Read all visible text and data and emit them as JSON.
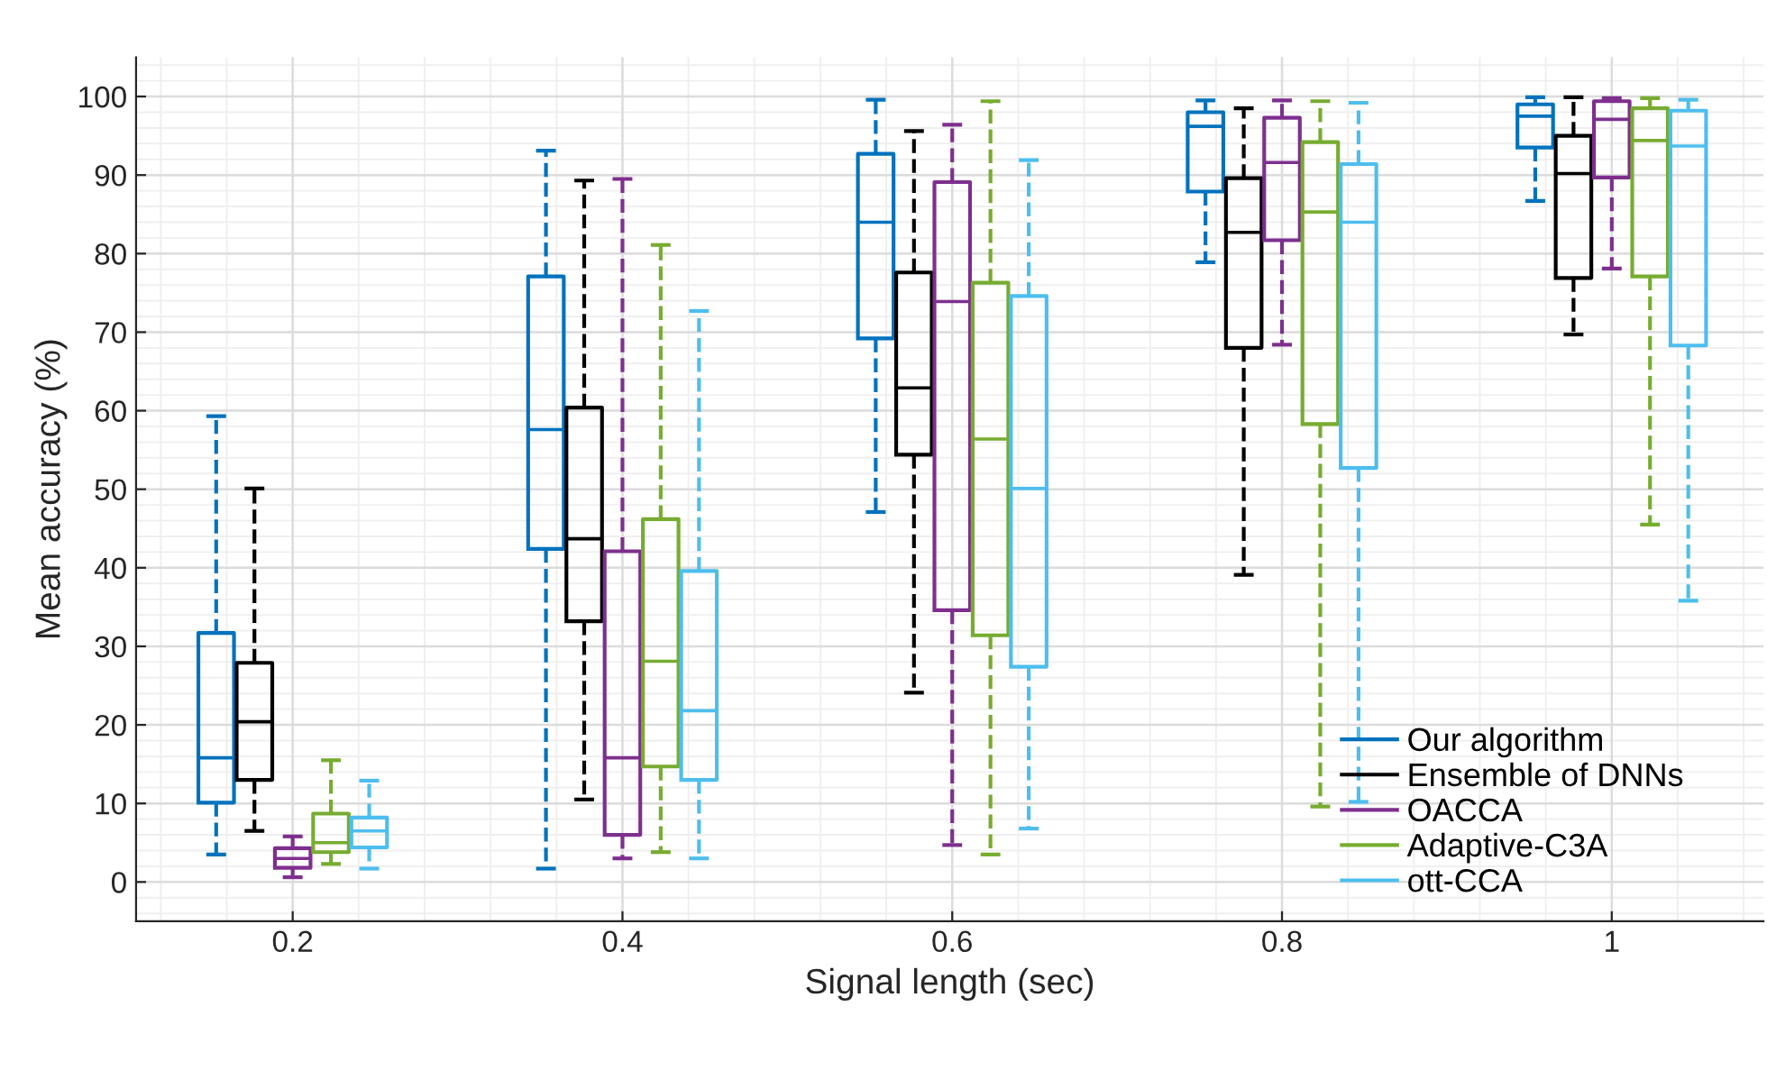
{
  "chart_data": {
    "type": "box",
    "xlabel": "Signal length (sec)",
    "ylabel": "Mean accuracy (%)",
    "categories": [
      "0.2",
      "0.4",
      "0.6",
      "0.8",
      "1"
    ],
    "ylim": [
      -5,
      105
    ],
    "yticks": [
      0,
      10,
      20,
      30,
      40,
      50,
      60,
      70,
      80,
      90,
      100
    ],
    "grid": true,
    "legend": "bottom right",
    "line_style": "dashed",
    "series": [
      {
        "name": "Our algorithm",
        "color": "#0072bd",
        "boxes": [
          {
            "low": 3.5,
            "q1": 10.1,
            "median": 15.8,
            "q3": 31.7,
            "high": 59.3
          },
          {
            "low": 1.7,
            "q1": 42.4,
            "median": 57.6,
            "q3": 77.1,
            "high": 93.1
          },
          {
            "low": 47.1,
            "q1": 69.2,
            "median": 84.0,
            "q3": 92.7,
            "high": 99.6
          },
          {
            "low": 78.9,
            "q1": 87.9,
            "median": 96.2,
            "q3": 98.0,
            "high": 99.5
          },
          {
            "low": 86.7,
            "q1": 93.5,
            "median": 97.5,
            "q3": 99.0,
            "high": 99.9
          }
        ]
      },
      {
        "name": "Ensemble of DNNs",
        "color": "#000000",
        "boxes": [
          {
            "low": 6.5,
            "q1": 13.0,
            "median": 20.4,
            "q3": 27.9,
            "high": 50.1
          },
          {
            "low": 10.5,
            "q1": 33.2,
            "median": 43.7,
            "q3": 60.4,
            "high": 89.3
          },
          {
            "low": 24.1,
            "q1": 54.4,
            "median": 62.9,
            "q3": 77.6,
            "high": 95.6
          },
          {
            "low": 39.1,
            "q1": 68.0,
            "median": 82.7,
            "q3": 89.6,
            "high": 98.5
          },
          {
            "low": 69.7,
            "q1": 76.9,
            "median": 90.2,
            "q3": 95.0,
            "high": 99.9
          }
        ]
      },
      {
        "name": "OACCA",
        "color": "#7e2f8e",
        "boxes": [
          {
            "low": 0.6,
            "q1": 1.8,
            "median": 3.0,
            "q3": 4.3,
            "high": 5.8
          },
          {
            "low": 3.0,
            "q1": 6.0,
            "median": 15.8,
            "q3": 42.1,
            "high": 89.5
          },
          {
            "low": 4.7,
            "q1": 34.6,
            "median": 73.9,
            "q3": 89.1,
            "high": 96.4
          },
          {
            "low": 68.4,
            "q1": 81.7,
            "median": 91.6,
            "q3": 97.3,
            "high": 99.5
          },
          {
            "low": 78.1,
            "q1": 89.7,
            "median": 97.1,
            "q3": 99.4,
            "high": 99.8
          }
        ]
      },
      {
        "name": "Adaptive-C3A",
        "color": "#77ac30",
        "boxes": [
          {
            "low": 2.3,
            "q1": 3.8,
            "median": 5.0,
            "q3": 8.7,
            "high": 15.5
          },
          {
            "low": 3.8,
            "q1": 14.7,
            "median": 28.1,
            "q3": 46.2,
            "high": 81.1
          },
          {
            "low": 3.5,
            "q1": 31.4,
            "median": 56.4,
            "q3": 76.3,
            "high": 99.4
          },
          {
            "low": 9.6,
            "q1": 58.3,
            "median": 85.3,
            "q3": 94.2,
            "high": 99.4
          },
          {
            "low": 45.5,
            "q1": 77.1,
            "median": 94.4,
            "q3": 98.5,
            "high": 99.8
          }
        ]
      },
      {
        "name": "ott-CCA",
        "color": "#4dbeee",
        "boxes": [
          {
            "low": 1.7,
            "q1": 4.4,
            "median": 6.5,
            "q3": 8.2,
            "high": 12.9
          },
          {
            "low": 3.0,
            "q1": 13.0,
            "median": 21.8,
            "q3": 39.6,
            "high": 72.7
          },
          {
            "low": 6.8,
            "q1": 27.4,
            "median": 50.1,
            "q3": 74.6,
            "high": 91.9
          },
          {
            "low": 10.2,
            "q1": 52.7,
            "median": 84.0,
            "q3": 91.4,
            "high": 99.2
          },
          {
            "low": 35.8,
            "q1": 68.3,
            "median": 93.7,
            "q3": 98.2,
            "high": 99.6
          }
        ]
      }
    ]
  }
}
